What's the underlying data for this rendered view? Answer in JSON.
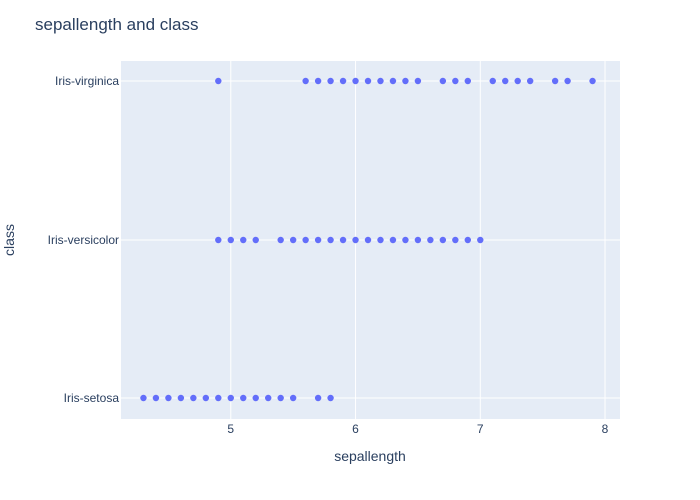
{
  "chart_data": {
    "type": "scatter",
    "title": "sepallength and class",
    "xlabel": "sepallength",
    "ylabel": "class",
    "xlim": [
      4.12,
      8.12
    ],
    "x_ticks": [
      5,
      6,
      7,
      8
    ],
    "categories": [
      "Iris-setosa",
      "Iris-versicolor",
      "Iris-virginica"
    ],
    "grid": true,
    "legend": "none",
    "colors": {
      "plot_bg": "#e5ecf6",
      "grid": "#ffffff",
      "marker": "#636efa",
      "text": "#2a3f5f"
    },
    "series": [
      {
        "category": "Iris-virginica",
        "x": [
          4.9,
          5.6,
          5.7,
          5.8,
          5.9,
          6.0,
          6.1,
          6.2,
          6.3,
          6.4,
          6.5,
          6.7,
          6.8,
          6.9,
          7.1,
          7.2,
          7.3,
          7.4,
          7.6,
          7.7,
          7.9
        ]
      },
      {
        "category": "Iris-versicolor",
        "x": [
          4.9,
          5.0,
          5.1,
          5.2,
          5.4,
          5.5,
          5.6,
          5.7,
          5.8,
          5.9,
          6.0,
          6.1,
          6.2,
          6.3,
          6.4,
          6.5,
          6.6,
          6.7,
          6.8,
          6.9,
          7.0
        ]
      },
      {
        "category": "Iris-setosa",
        "x": [
          4.3,
          4.4,
          4.5,
          4.6,
          4.7,
          4.8,
          4.9,
          5.0,
          5.1,
          5.2,
          5.3,
          5.4,
          5.5,
          5.7,
          5.8
        ]
      }
    ]
  }
}
